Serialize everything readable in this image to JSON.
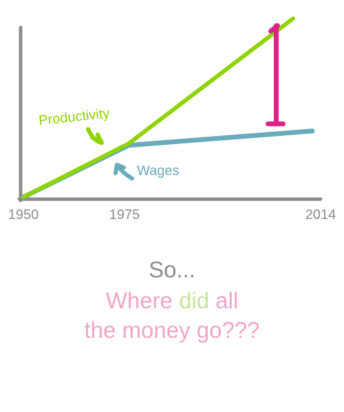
{
  "chart_data": {
    "type": "line",
    "title": "",
    "xlabel": "",
    "ylabel": "",
    "x_ticks": [
      "1950",
      "1975",
      "2014"
    ],
    "xlim": [
      1950,
      2014
    ],
    "ylim": [
      0,
      100
    ],
    "grid": false,
    "y_tick_labels": false,
    "series": [
      {
        "name": "Productivity",
        "color": "#8fd400",
        "x": [
          1950,
          1975,
          2014
        ],
        "y": [
          0,
          30,
          100
        ]
      },
      {
        "name": "Wages",
        "color": "#6aabbb",
        "x": [
          1950,
          1975,
          2014
        ],
        "y": [
          0,
          29,
          37
        ]
      }
    ],
    "gap_marker": {
      "x": 2010,
      "y_from": 41,
      "y_to": 96,
      "color": "#e0218a"
    }
  },
  "caption": {
    "line1": "So...",
    "line2_part1": "Where ",
    "line2_highlight": "did",
    "line2_part2": " all",
    "line3": "the money go???"
  },
  "colors": {
    "axis": "#8c8c8c",
    "caption_gray": "#8c8c8c",
    "caption_pink": "#f0a6c8",
    "caption_highlight": "#c6e59c"
  },
  "icons": [
    "curved-arrow-icon",
    "curved-arrow-icon",
    "i-beam-gap-icon"
  ]
}
